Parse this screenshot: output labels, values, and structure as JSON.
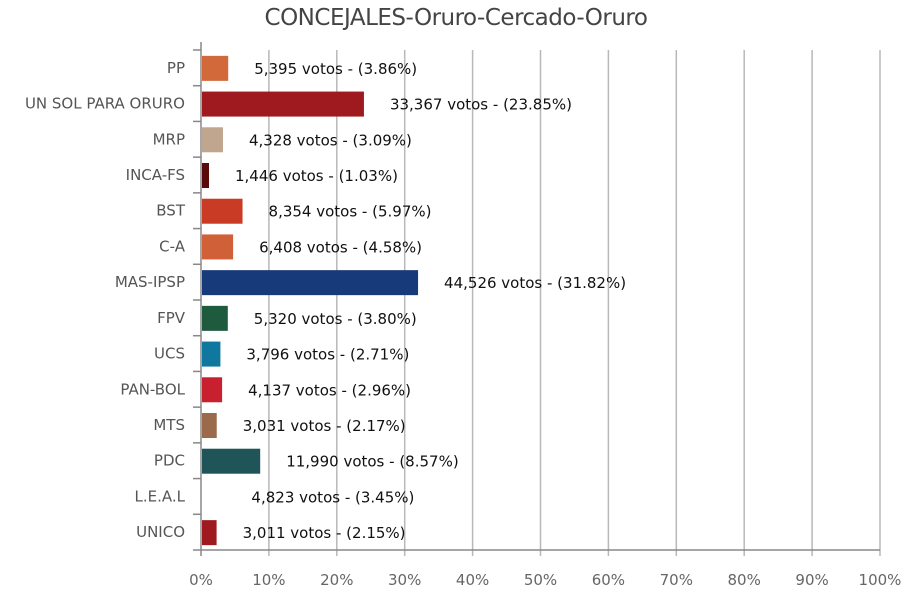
{
  "chart_data": {
    "type": "bar",
    "orientation": "horizontal",
    "title": "CONCEJALES-Oruro-Cercado-Oruro",
    "categories": [
      "PP",
      "UN SOL PARA ORURO",
      "MRP",
      "INCA-FS",
      "BST",
      "C-A",
      "MAS-IPSP",
      "FPV",
      "UCS",
      "PAN-BOL",
      "MTS",
      "PDC",
      "L.E.A.L",
      "UNICO"
    ],
    "votes": [
      5395,
      33367,
      4328,
      1446,
      8354,
      6408,
      44526,
      5320,
      3796,
      4137,
      3031,
      11990,
      4823,
      3011
    ],
    "values": [
      3.86,
      23.85,
      3.09,
      1.03,
      5.97,
      4.58,
      31.82,
      3.8,
      2.71,
      2.96,
      2.17,
      8.57,
      3.45,
      2.15
    ],
    "data_labels": [
      "5,395 votos - (3.86%)",
      "33,367 votos - (23.85%)",
      "4,328 votos - (3.09%)",
      "1,446 votos - (1.03%)",
      "8,354 votos - (5.97%)",
      "6,408 votos - (4.58%)",
      "44,526 votos - (31.82%)",
      "5,320 votos - (3.80%)",
      "3,796 votos - (2.71%)",
      "4,137 votos - (2.96%)",
      "3,031 votos - (2.17%)",
      "11,990 votos - (8.57%)",
      "4,823 votos - (3.45%)",
      "3,011 votos - (2.15%)"
    ],
    "colors": [
      "#d2693a",
      "#9e1a1e",
      "#c0a68e",
      "#5a0a0a",
      "#c93b24",
      "#cf6038",
      "#173a7a",
      "#1e5a3e",
      "#10779e",
      "#c8202e",
      "#9a6a4a",
      "#1f5558",
      "#ffffff",
      "#9e1a1e"
    ],
    "xlim": [
      0,
      100
    ],
    "x_ticks": [
      "0%",
      "10%",
      "20%",
      "30%",
      "40%",
      "50%",
      "60%",
      "70%",
      "80%",
      "90%",
      "100%"
    ],
    "grid": true,
    "xlabel": "",
    "ylabel": ""
  }
}
